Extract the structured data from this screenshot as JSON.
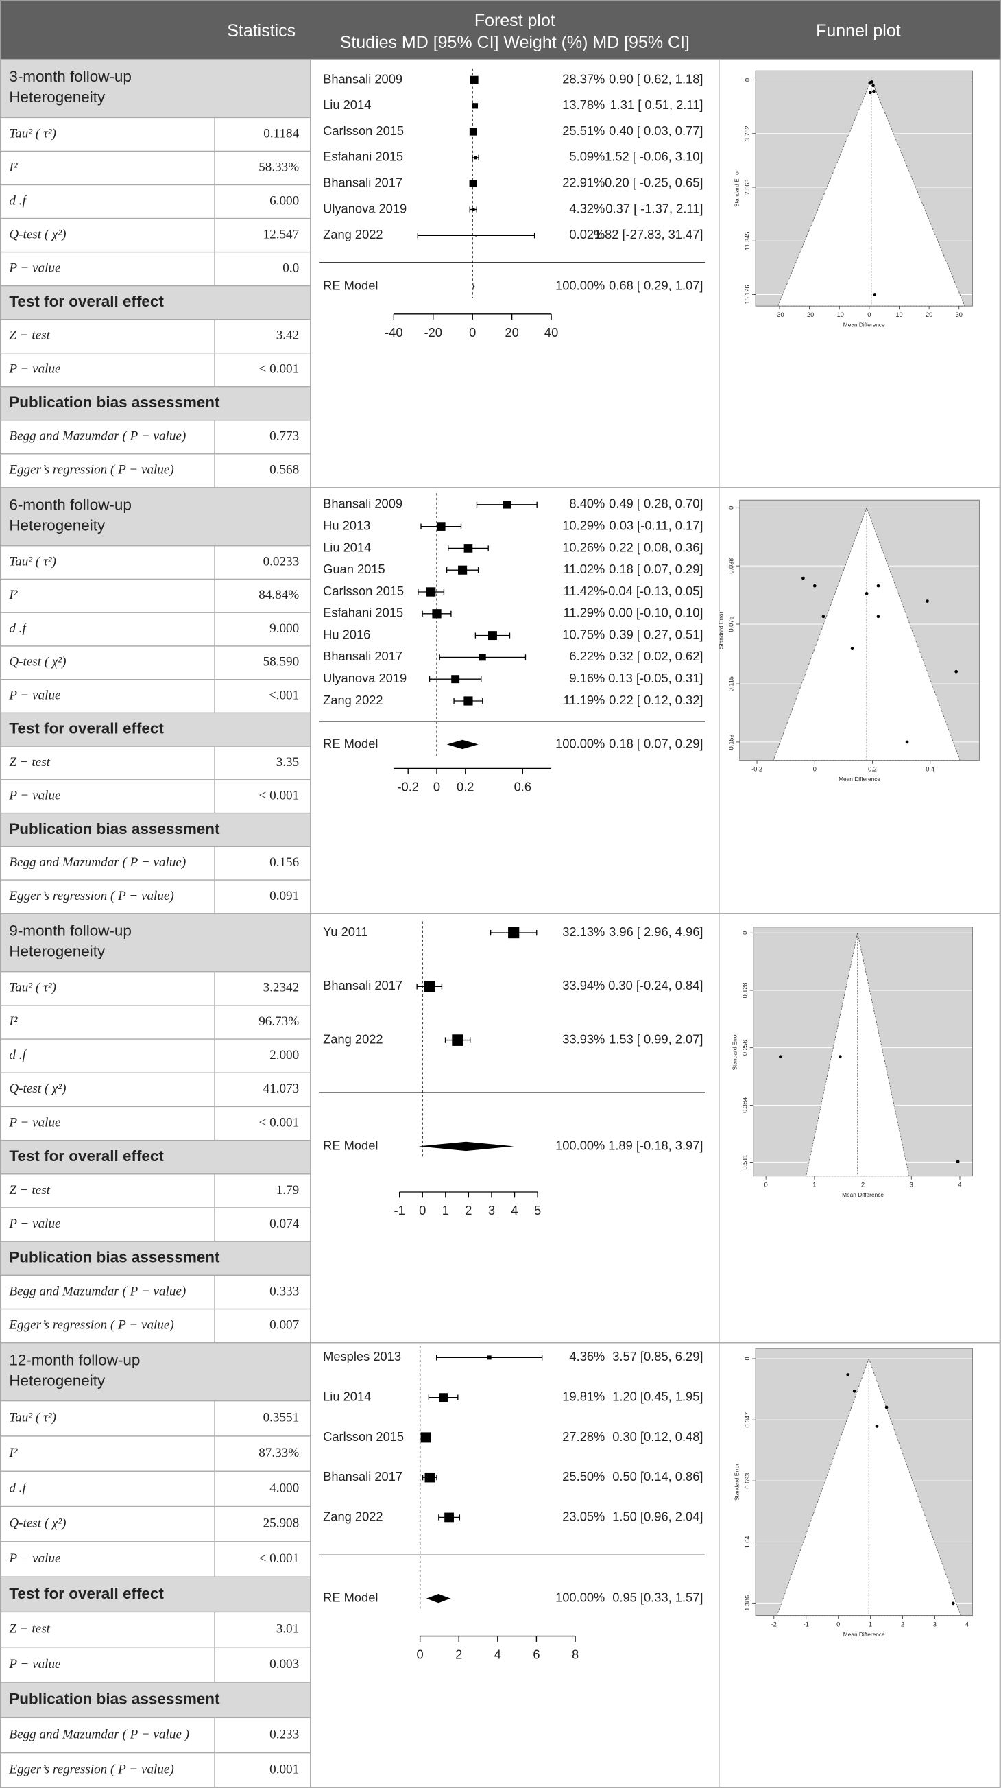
{
  "header": {
    "statistics": "Statistics",
    "forest_title": "Forest plot",
    "forest_subtitle": "Studies MD [95% CI] Weight (%) MD [95% CI]",
    "funnel_title": "Funnel plot"
  },
  "sections": [
    {
      "followup": "3-month follow-up",
      "groups": [
        {
          "title": "Heterogeneity",
          "rows": [
            {
              "label": "Tau² ( τ²)",
              "value": "0.1184"
            },
            {
              "label": "I²",
              "value": "58.33%"
            },
            {
              "label": "d .f",
              "value": "6.000"
            },
            {
              "label": "Q-test ( χ²)",
              "value": "12.547"
            },
            {
              "label": "P − value",
              "value": "0.0"
            }
          ]
        },
        {
          "title": "Test for overall effect",
          "rows": [
            {
              "label": "Z − test",
              "value": "3.42"
            },
            {
              "label": "P − value",
              "value": "< 0.001"
            }
          ]
        },
        {
          "title": "Publication bias assessment",
          "rows": [
            {
              "label": "Begg and Mazumdar ( P − value)",
              "value": "0.773"
            },
            {
              "label": "Egger’s regression ( P − value)",
              "value": "0.568"
            }
          ]
        }
      ],
      "forest": {
        "xlim": [
          -40,
          40
        ],
        "xticks": [
          -40,
          -20,
          0,
          20,
          40
        ],
        "studies": [
          {
            "name": "Bhansali 2009",
            "weight": 28.37,
            "weight_label": "28.37%",
            "md": 0.9,
            "ci": [
              0.62,
              1.18
            ],
            "label": "0.90 [ 0.62, 1.18]"
          },
          {
            "name": "Liu 2014",
            "weight": 13.78,
            "weight_label": "13.78%",
            "md": 1.31,
            "ci": [
              0.51,
              2.11
            ],
            "label": "1.31 [ 0.51, 2.11]"
          },
          {
            "name": "Carlsson 2015",
            "weight": 25.51,
            "weight_label": "25.51%",
            "md": 0.4,
            "ci": [
              0.03,
              0.77
            ],
            "label": "0.40 [ 0.03, 0.77]"
          },
          {
            "name": "Esfahani 2015",
            "weight": 5.09,
            "weight_label": "5.09%",
            "md": 1.52,
            "ci": [
              -0.06,
              3.1
            ],
            "label": "1.52 [ -0.06, 3.10]"
          },
          {
            "name": "Bhansali 2017",
            "weight": 22.91,
            "weight_label": "22.91%",
            "md": 0.2,
            "ci": [
              -0.25,
              0.65
            ],
            "label": "0.20 [ -0.25, 0.65]"
          },
          {
            "name": "Ulyanova 2019",
            "weight": 4.32,
            "weight_label": "4.32%",
            "md": 0.37,
            "ci": [
              -1.37,
              2.11
            ],
            "label": "0.37 [ -1.37, 2.11]"
          },
          {
            "name": "Zang 2022",
            "weight": 0.02,
            "weight_label": "0.02%",
            "md": 1.82,
            "ci": [
              -27.83,
              31.47
            ],
            "label": "1.82 [-27.83, 31.47]"
          }
        ],
        "summary": {
          "name": "RE Model",
          "weight": 100.0,
          "weight_label": "100.00%",
          "md": 0.68,
          "ci": [
            0.29,
            1.07
          ],
          "label": "0.68 [ 0.29, 1.07]"
        }
      },
      "funnel": {
        "x_label": "Mean Difference",
        "y_label": "Standard Error",
        "xlim": [
          -38,
          34.5
        ],
        "ylim": [
          -0.64,
          15.93
        ],
        "y_reversed": true,
        "xticks": [
          -30,
          -20,
          -10,
          0,
          10,
          20,
          30
        ],
        "yticks": [
          0,
          3.782,
          7.563,
          11.345,
          15.126
        ],
        "points": {
          "x": [
            0.9,
            1.31,
            0.4,
            1.52,
            0.2,
            0.37,
            1.82
          ],
          "y": [
            0.143,
            0.408,
            0.189,
            0.806,
            0.23,
            0.888,
            15.126
          ]
        }
      }
    },
    {
      "followup": "6-month follow-up",
      "groups": [
        {
          "title": "Heterogeneity",
          "rows": [
            {
              "label": "Tau² ( τ²)",
              "value": "0.0233"
            },
            {
              "label": "I²",
              "value": "84.84%"
            },
            {
              "label": "d .f",
              "value": "9.000"
            },
            {
              "label": "Q-test ( χ²)",
              "value": "58.590"
            },
            {
              "label": "P − value",
              "value": "<.001"
            }
          ]
        },
        {
          "title": "Test for overall effect",
          "rows": [
            {
              "label": "Z − test",
              "value": "3.35"
            },
            {
              "label": "P − value",
              "value": "< 0.001"
            }
          ]
        },
        {
          "title": "Publication bias assessment",
          "rows": [
            {
              "label": "Begg and Mazumdar ( P − value)",
              "value": "0.156"
            },
            {
              "label": "Egger’s regression ( P − value)",
              "value": "0.091"
            }
          ]
        }
      ],
      "forest": {
        "xlim": [
          -0.3,
          0.8
        ],
        "xticks": [
          -0.2,
          0,
          0.2,
          0.6
        ],
        "studies": [
          {
            "name": "Bhansali 2009",
            "weight": 8.4,
            "weight_label": "8.40%",
            "md": 0.49,
            "ci": [
              0.28,
              0.7
            ],
            "label": "0.49 [ 0.28, 0.70]"
          },
          {
            "name": "Hu 2013",
            "weight": 10.29,
            "weight_label": "10.29%",
            "md": 0.03,
            "ci": [
              -0.11,
              0.17
            ],
            "label": "0.03 [-0.11, 0.17]"
          },
          {
            "name": "Liu 2014",
            "weight": 10.26,
            "weight_label": "10.26%",
            "md": 0.22,
            "ci": [
              0.08,
              0.36
            ],
            "label": "0.22 [ 0.08, 0.36]"
          },
          {
            "name": "Guan 2015",
            "weight": 11.02,
            "weight_label": "11.02%",
            "md": 0.18,
            "ci": [
              0.07,
              0.29
            ],
            "label": "0.18 [ 0.07, 0.29]"
          },
          {
            "name": "Carlsson 2015",
            "weight": 11.42,
            "weight_label": "11.42%",
            "md": -0.04,
            "ci": [
              -0.13,
              0.05
            ],
            "label": "-0.04 [-0.13, 0.05]"
          },
          {
            "name": "Esfahani 2015",
            "weight": 11.29,
            "weight_label": "11.29%",
            "md": 0.0,
            "ci": [
              -0.1,
              0.1
            ],
            "label": "0.00 [-0.10, 0.10]"
          },
          {
            "name": "Hu 2016",
            "weight": 10.75,
            "weight_label": "10.75%",
            "md": 0.39,
            "ci": [
              0.27,
              0.51
            ],
            "label": "0.39 [ 0.27, 0.51]"
          },
          {
            "name": "Bhansali 2017",
            "weight": 6.22,
            "weight_label": "6.22%",
            "md": 0.32,
            "ci": [
              0.02,
              0.62
            ],
            "label": "0.32 [ 0.02, 0.62]"
          },
          {
            "name": "Ulyanova 2019",
            "weight": 9.16,
            "weight_label": "9.16%",
            "md": 0.13,
            "ci": [
              -0.05,
              0.31
            ],
            "label": "0.13 [-0.05, 0.31]"
          },
          {
            "name": "Zang 2022",
            "weight": 11.19,
            "weight_label": "11.19%",
            "md": 0.22,
            "ci": [
              0.12,
              0.32
            ],
            "label": "0.22 [ 0.12, 0.32]"
          }
        ],
        "summary": {
          "name": "RE Model",
          "weight": 100.0,
          "weight_label": "100.00%",
          "md": 0.18,
          "ci": [
            0.07,
            0.29
          ],
          "label": "0.18 [ 0.07, 0.29]"
        }
      },
      "funnel": {
        "x_label": "Mean Difference",
        "y_label": "Standard Error",
        "xlim": [
          -0.26,
          0.57
        ],
        "ylim": [
          -0.005,
          0.165
        ],
        "y_reversed": true,
        "xticks": [
          -0.2,
          0,
          0.2,
          0.4
        ],
        "yticks": [
          0,
          0.038,
          0.076,
          0.115,
          0.153
        ],
        "points": {
          "x": [
            0.49,
            0.03,
            0.22,
            0.18,
            -0.04,
            0.0,
            0.39,
            0.32,
            0.13,
            0.22
          ],
          "y": [
            0.107,
            0.071,
            0.071,
            0.056,
            0.046,
            0.051,
            0.061,
            0.153,
            0.092,
            0.051
          ]
        }
      }
    },
    {
      "followup": "9-month follow-up",
      "groups": [
        {
          "title": "Heterogeneity",
          "rows": [
            {
              "label": "Tau² ( τ²)",
              "value": "3.2342"
            },
            {
              "label": "I²",
              "value": "96.73%"
            },
            {
              "label": "d .f",
              "value": "2.000"
            },
            {
              "label": "Q-test ( χ²)",
              "value": "41.073"
            },
            {
              "label": "P − value",
              "value": "< 0.001"
            }
          ]
        },
        {
          "title": "Test for overall effect",
          "rows": [
            {
              "label": "Z − test",
              "value": "1.79"
            },
            {
              "label": "P − value",
              "value": "0.074"
            }
          ]
        },
        {
          "title": "Publication bias assessment",
          "rows": [
            {
              "label": "Begg and Mazumdar ( P − value)",
              "value": "0.333"
            },
            {
              "label": "Egger’s regression ( P − value)",
              "value": "0.007"
            }
          ]
        }
      ],
      "forest": {
        "xlim": [
          -1,
          5
        ],
        "xticks": [
          -1,
          0,
          1,
          2,
          3,
          4,
          5
        ],
        "studies": [
          {
            "name": "Yu 2011",
            "weight": 32.13,
            "weight_label": "32.13%",
            "md": 3.96,
            "ci": [
              2.96,
              4.96
            ],
            "label": "3.96 [ 2.96, 4.96]"
          },
          {
            "name": "Bhansali 2017",
            "weight": 33.94,
            "weight_label": "33.94%",
            "md": 0.3,
            "ci": [
              -0.24,
              0.84
            ],
            "label": "0.30 [-0.24, 0.84]"
          },
          {
            "name": "Zang 2022",
            "weight": 33.93,
            "weight_label": "33.93%",
            "md": 1.53,
            "ci": [
              0.99,
              2.07
            ],
            "label": "1.53 [ 0.99, 2.07]"
          }
        ],
        "summary": {
          "name": "RE Model",
          "weight": 100.0,
          "weight_label": "100.00%",
          "md": 1.89,
          "ci": [
            -0.18,
            3.97
          ],
          "label": "1.89 [-0.18, 3.97]"
        }
      },
      "funnel": {
        "x_label": "Mean Difference",
        "y_label": "Standard Error",
        "xlim": [
          -0.26,
          4.26
        ],
        "ylim": [
          -0.013,
          0.542
        ],
        "y_reversed": true,
        "xticks": [
          0,
          1,
          2,
          3,
          4
        ],
        "yticks": [
          0,
          0.128,
          0.256,
          0.384,
          0.511
        ],
        "points": {
          "x": [
            3.96,
            0.3,
            1.53
          ],
          "y": [
            0.51,
            0.276,
            0.276
          ]
        }
      }
    },
    {
      "followup": "12-month follow-up",
      "groups": [
        {
          "title": "Heterogeneity",
          "rows": [
            {
              "label": "Tau² ( τ²)",
              "value": "0.3551"
            },
            {
              "label": "I²",
              "value": "87.33%"
            },
            {
              "label": "d .f",
              "value": "4.000"
            },
            {
              "label": "Q-test ( χ²)",
              "value": "25.908"
            },
            {
              "label": "P − value",
              "value": "< 0.001"
            }
          ]
        },
        {
          "title": "Test for overall effect",
          "rows": [
            {
              "label": "Z − test",
              "value": "3.01"
            },
            {
              "label": "P − value",
              "value": "0.003"
            }
          ]
        },
        {
          "title": "Publication bias assessment",
          "rows": [
            {
              "label": "Begg and Mazumdar ( P − value )",
              "value": "0.233"
            },
            {
              "label": "Egger’s regression ( P − value)",
              "value": "0.001"
            }
          ]
        }
      ],
      "forest": {
        "xlim": [
          0,
          8
        ],
        "xticks": [
          0,
          2,
          4,
          6,
          8
        ],
        "studies": [
          {
            "name": "Mesples 2013",
            "weight": 4.36,
            "weight_label": "4.36%",
            "md": 3.57,
            "ci": [
              0.85,
              6.29
            ],
            "label": "3.57 [0.85, 6.29]"
          },
          {
            "name": "Liu 2014",
            "weight": 19.81,
            "weight_label": "19.81%",
            "md": 1.2,
            "ci": [
              0.45,
              1.95
            ],
            "label": "1.20 [0.45, 1.95]"
          },
          {
            "name": "Carlsson 2015",
            "weight": 27.28,
            "weight_label": "27.28%",
            "md": 0.3,
            "ci": [
              0.12,
              0.48
            ],
            "label": "0.30 [0.12, 0.48]"
          },
          {
            "name": "Bhansali 2017",
            "weight": 25.5,
            "weight_label": "25.50%",
            "md": 0.5,
            "ci": [
              0.14,
              0.86
            ],
            "label": "0.50 [0.14, 0.86]"
          },
          {
            "name": "Zang 2022",
            "weight": 23.05,
            "weight_label": "23.05%",
            "md": 1.5,
            "ci": [
              0.96,
              2.04
            ],
            "label": "1.50 [0.96, 2.04]"
          }
        ],
        "summary": {
          "name": "RE Model",
          "weight": 100.0,
          "weight_label": "100.00%",
          "md": 0.95,
          "ci": [
            0.33,
            1.57
          ],
          "label": "0.95 [0.33, 1.57]"
        }
      },
      "funnel": {
        "x_label": "Mean Difference",
        "y_label": "Standard Error",
        "xlim": [
          -2.57,
          4.17
        ],
        "ylim": [
          -0.058,
          1.457
        ],
        "y_reversed": true,
        "xticks": [
          -2,
          -1,
          0,
          1,
          2,
          3,
          4
        ],
        "yticks": [
          0,
          0.347,
          0.693,
          1.04,
          1.386
        ],
        "points": {
          "x": [
            3.57,
            1.2,
            0.3,
            0.5,
            1.5
          ],
          "y": [
            1.388,
            0.383,
            0.092,
            0.184,
            0.276
          ]
        }
      }
    }
  ]
}
